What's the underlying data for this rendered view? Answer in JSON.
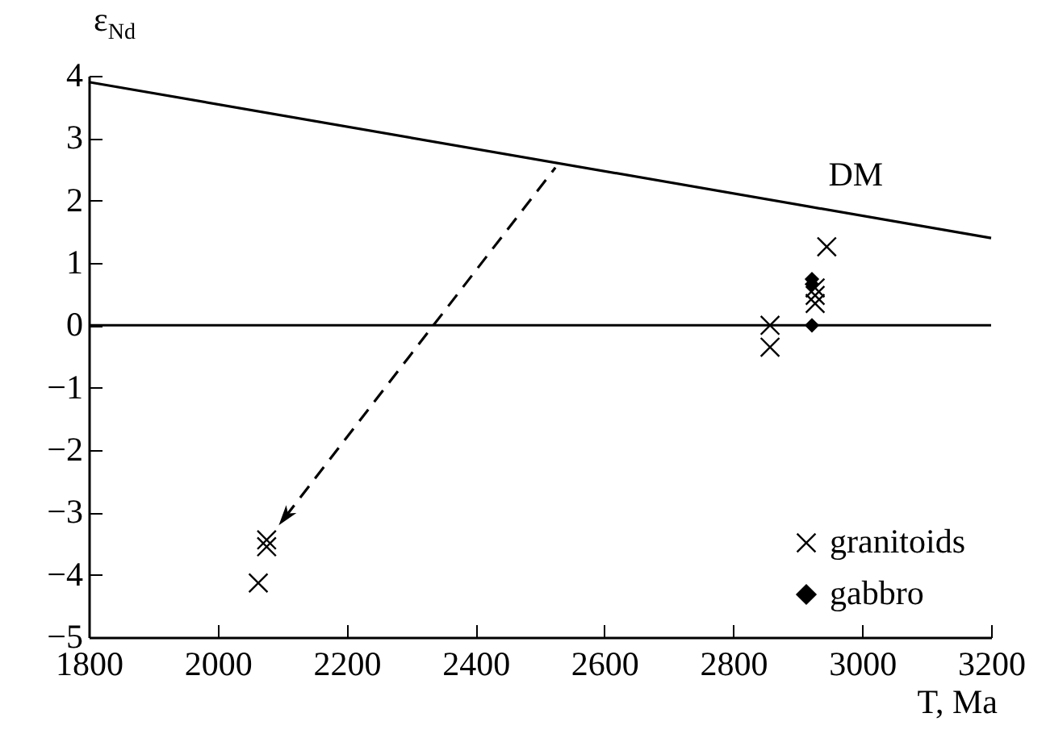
{
  "chart_data": {
    "type": "scatter",
    "xlabel": "T, Ma",
    "ylabel": "ε$_{Nd}$",
    "xlim": [
      1800,
      3200
    ],
    "ylim": [
      -5,
      4
    ],
    "xticks": [
      1800,
      2000,
      2200,
      2400,
      2600,
      2800,
      3000,
      3200
    ],
    "yticks": [
      -5,
      -4,
      -3,
      -2,
      -1,
      0,
      1,
      2,
      3,
      4
    ],
    "grid": false,
    "legend": "bottom right",
    "series": [
      {
        "name": "DM",
        "type": "line",
        "color": "#000000",
        "line_style": "solid",
        "x": [
          1800,
          3200
        ],
        "values": [
          3.9,
          1.4
        ]
      },
      {
        "type": "line",
        "color": "#000000",
        "line_style": "dashed",
        "x": [
          2524,
          2105
        ],
        "values": [
          2.53,
          -3.07
        ]
      },
      {
        "name": "granitoids",
        "color": "#000000",
        "marker": "cross",
        "x": [
          2063,
          2076,
          2076,
          2857,
          2857,
          2927,
          2927,
          2927,
          2945
        ],
        "values": [
          -4.13,
          -3.44,
          -3.55,
          0,
          -0.35,
          0.6,
          0.48,
          0.35,
          1.26
        ]
      },
      {
        "name": "gabbro",
        "color": "#000000",
        "marker": "diamond",
        "x": [
          2922,
          2922,
          2922
        ],
        "values": [
          0.74,
          0.66,
          0
        ]
      }
    ],
    "ref_lines": [
      {
        "axis": "y",
        "value": 0,
        "color": "#000000",
        "line_style": "solid"
      }
    ]
  }
}
